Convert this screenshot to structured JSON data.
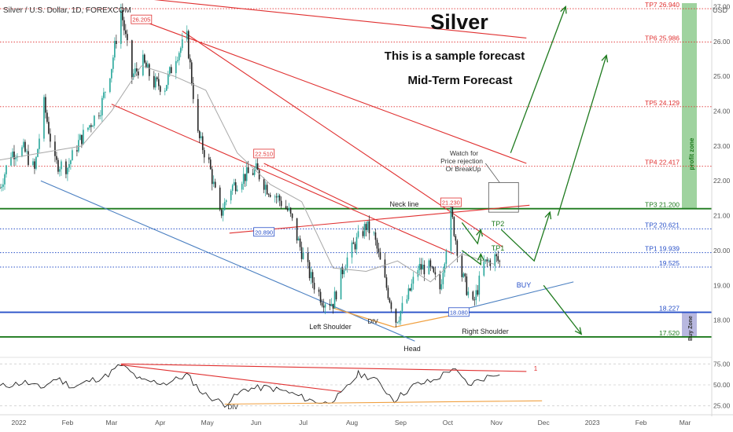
{
  "header": {
    "symbol_line": "Silver / U.S. Dollar, 1D, FOREXCOM",
    "title": "Silver",
    "subtitle": "This is a sample forecast",
    "subtitle2": "Mid-Term Forecast",
    "currency": "USD"
  },
  "annotations": {
    "neck_line": "Neck line",
    "watch_for": [
      "Watch for",
      "Price rejection",
      "Or BreakUp"
    ],
    "left_shoulder": "Left Shoulder",
    "head": "Head",
    "right_shoulder": "Right Shoulder",
    "div": "DIV",
    "div_rsi": "DIV",
    "buy": "BUY",
    "tp1": "TP1",
    "tp2": "TP2",
    "profit_zone": "profit zone",
    "buy_zone": "Buy Zone",
    "rsi_marker": "1",
    "peak_labels": [
      {
        "text": "26.205",
        "x": "2022-03-20",
        "y": 26.6
      },
      {
        "text": "22.510",
        "x": "2022-06-06",
        "y": 22.75
      },
      {
        "text": "20.890",
        "x": "2022-06-06",
        "y": 20.5
      },
      {
        "text": "21.230",
        "x": "2022-10-03",
        "y": 21.35
      },
      {
        "text": "18.080",
        "x": "2022-10-08",
        "y": 18.2
      }
    ]
  },
  "colors": {
    "red": "#e03030",
    "green": "#1e7a1e",
    "blue": "#2850c8",
    "steel": "#4a7fc1",
    "orange": "#f0a040",
    "candle_up": "#26a69a",
    "candle_down": "#222222",
    "ma": "#a8a8a8",
    "profit_band": "#9fd39f",
    "buy_band": "#b8b8e0"
  },
  "chart_data": {
    "type": "candlestick",
    "x_axis": {
      "range": [
        "2021-12-20",
        "2023-03-18"
      ],
      "tick_labels": [
        {
          "x": "2022-01-01",
          "label": "2022"
        },
        {
          "x": "2022-02-01",
          "label": "Feb"
        },
        {
          "x": "2022-03-01",
          "label": "Mar"
        },
        {
          "x": "2022-04-01",
          "label": "Apr"
        },
        {
          "x": "2022-05-01",
          "label": "May"
        },
        {
          "x": "2022-06-01",
          "label": "Jun"
        },
        {
          "x": "2022-07-01",
          "label": "Jul"
        },
        {
          "x": "2022-08-01",
          "label": "Aug"
        },
        {
          "x": "2022-09-01",
          "label": "Sep"
        },
        {
          "x": "2022-10-01",
          "label": "Oct"
        },
        {
          "x": "2022-11-01",
          "label": "Nov"
        },
        {
          "x": "2022-12-01",
          "label": "Dec"
        },
        {
          "x": "2023-01-01",
          "label": "2023"
        },
        {
          "x": "2023-02-01",
          "label": "Feb"
        },
        {
          "x": "2023-03-01",
          "label": "Mar"
        }
      ]
    },
    "y_axis": {
      "range": [
        17.0,
        27.1
      ],
      "tick_values": [
        18,
        19,
        20,
        21,
        22,
        23,
        24,
        25,
        26,
        27
      ],
      "tick_labels": [
        "18.00",
        "19.00",
        "20.00",
        "21.00",
        "22.00",
        "23.00",
        "24.00",
        "25.00",
        "26.00",
        "27.00"
      ]
    },
    "price_path": [
      {
        "x": "2021-12-20",
        "y": 21.8
      },
      {
        "x": "2021-12-27",
        "y": 22.8
      },
      {
        "x": "2022-01-04",
        "y": 22.9
      },
      {
        "x": "2022-01-11",
        "y": 22.3
      },
      {
        "x": "2022-01-17",
        "y": 24.2
      },
      {
        "x": "2022-01-24",
        "y": 22.5
      },
      {
        "x": "2022-02-01",
        "y": 22.4
      },
      {
        "x": "2022-02-08",
        "y": 23.1
      },
      {
        "x": "2022-02-15",
        "y": 23.6
      },
      {
        "x": "2022-02-22",
        "y": 24.1
      },
      {
        "x": "2022-03-01",
        "y": 25.3
      },
      {
        "x": "2022-03-07",
        "y": 26.9
      },
      {
        "x": "2022-03-14",
        "y": 25.0
      },
      {
        "x": "2022-03-21",
        "y": 25.4
      },
      {
        "x": "2022-03-28",
        "y": 24.8
      },
      {
        "x": "2022-04-04",
        "y": 24.7
      },
      {
        "x": "2022-04-11",
        "y": 25.6
      },
      {
        "x": "2022-04-18",
        "y": 26.1
      },
      {
        "x": "2022-04-25",
        "y": 23.3
      },
      {
        "x": "2022-05-02",
        "y": 22.5
      },
      {
        "x": "2022-05-09",
        "y": 21.0
      },
      {
        "x": "2022-05-16",
        "y": 21.8
      },
      {
        "x": "2022-05-23",
        "y": 22.1
      },
      {
        "x": "2022-06-01",
        "y": 22.3
      },
      {
        "x": "2022-06-08",
        "y": 21.8
      },
      {
        "x": "2022-06-15",
        "y": 21.5
      },
      {
        "x": "2022-06-22",
        "y": 21.1
      },
      {
        "x": "2022-06-29",
        "y": 20.1
      },
      {
        "x": "2022-07-06",
        "y": 19.2
      },
      {
        "x": "2022-07-13",
        "y": 18.6
      },
      {
        "x": "2022-07-20",
        "y": 18.5
      },
      {
        "x": "2022-07-27",
        "y": 19.6
      },
      {
        "x": "2022-08-03",
        "y": 20.2
      },
      {
        "x": "2022-08-10",
        "y": 20.7
      },
      {
        "x": "2022-08-15",
        "y": 20.4
      },
      {
        "x": "2022-08-22",
        "y": 19.1
      },
      {
        "x": "2022-08-29",
        "y": 18.0
      },
      {
        "x": "2022-09-05",
        "y": 18.6
      },
      {
        "x": "2022-09-12",
        "y": 19.5
      },
      {
        "x": "2022-09-19",
        "y": 19.5
      },
      {
        "x": "2022-09-26",
        "y": 18.9
      },
      {
        "x": "2022-10-03",
        "y": 21.1
      },
      {
        "x": "2022-10-10",
        "y": 19.3
      },
      {
        "x": "2022-10-17",
        "y": 18.4
      },
      {
        "x": "2022-10-24",
        "y": 19.6
      },
      {
        "x": "2022-10-31",
        "y": 19.8
      },
      {
        "x": "2022-11-04",
        "y": 19.6
      }
    ],
    "moving_average": [
      {
        "x": "2021-12-20",
        "y": 22.6
      },
      {
        "x": "2022-01-15",
        "y": 22.8
      },
      {
        "x": "2022-02-10",
        "y": 23.0
      },
      {
        "x": "2022-03-01",
        "y": 24.0
      },
      {
        "x": "2022-03-20",
        "y": 25.3
      },
      {
        "x": "2022-04-10",
        "y": 25.0
      },
      {
        "x": "2022-04-30",
        "y": 24.6
      },
      {
        "x": "2022-05-20",
        "y": 22.8
      },
      {
        "x": "2022-06-10",
        "y": 21.9
      },
      {
        "x": "2022-06-30",
        "y": 21.4
      },
      {
        "x": "2022-07-20",
        "y": 19.5
      },
      {
        "x": "2022-08-10",
        "y": 19.4
      },
      {
        "x": "2022-08-30",
        "y": 19.7
      },
      {
        "x": "2022-09-20",
        "y": 19.1
      },
      {
        "x": "2022-10-10",
        "y": 19.9
      },
      {
        "x": "2022-10-31",
        "y": 19.6
      }
    ],
    "levels": [
      {
        "name": "TP7",
        "label": "TP7  26.940",
        "value": 26.94,
        "color": "#e03030",
        "style": "dotted"
      },
      {
        "name": "TP6",
        "label": "TP6  25.986",
        "value": 25.986,
        "color": "#e03030",
        "style": "dotted"
      },
      {
        "name": "TP5",
        "label": "TP5  24.129",
        "value": 24.129,
        "color": "#e03030",
        "style": "dotted"
      },
      {
        "name": "TP4",
        "label": "TP4  22.417",
        "value": 22.417,
        "color": "#e03030",
        "style": "dotted"
      },
      {
        "name": "TP3",
        "label": "TP3  21.200",
        "value": 21.2,
        "color": "#1e7a1e",
        "style": "solid"
      },
      {
        "name": "TP2",
        "label": "TP2  20.621",
        "value": 20.621,
        "color": "#2850c8",
        "style": "dotted"
      },
      {
        "name": "TP1",
        "label": "TP1  19.939",
        "value": 19.939,
        "color": "#2850c8",
        "style": "dotted"
      },
      {
        "name": "L19525",
        "label": "19.525",
        "value": 19.525,
        "color": "#2850c8",
        "style": "dotted"
      },
      {
        "name": "L18227",
        "label": "18.227",
        "value": 18.227,
        "color": "#2850c8",
        "style": "solid"
      },
      {
        "name": "L17520",
        "label": "17.520",
        "value": 17.52,
        "color": "#1e7a1e",
        "style": "solid"
      }
    ],
    "trendlines": [
      {
        "name": "red-upper-1",
        "color": "#e03030",
        "points": [
          {
            "x": "2022-03-07",
            "y": 27.3
          },
          {
            "x": "2022-11-20",
            "y": 26.1
          }
        ]
      },
      {
        "name": "red-upper-2",
        "color": "#e03030",
        "points": [
          {
            "x": "2022-03-20",
            "y": 26.6
          },
          {
            "x": "2022-11-20",
            "y": 22.5
          }
        ]
      },
      {
        "name": "red-upper-3",
        "color": "#e03030",
        "points": [
          {
            "x": "2022-04-15",
            "y": 26.3
          },
          {
            "x": "2022-11-05",
            "y": 20.1
          }
        ]
      },
      {
        "name": "red-upper-4",
        "color": "#e03030",
        "points": [
          {
            "x": "2022-03-01",
            "y": 24.2
          },
          {
            "x": "2022-10-05",
            "y": 19.9
          }
        ]
      },
      {
        "name": "red-upper-5",
        "color": "#e03030",
        "points": [
          {
            "x": "2022-06-06",
            "y": 22.5
          },
          {
            "x": "2022-08-05",
            "y": 21.2
          }
        ]
      },
      {
        "name": "neck-line",
        "color": "#e03030",
        "points": [
          {
            "x": "2022-05-15",
            "y": 20.5
          },
          {
            "x": "2022-11-22",
            "y": 21.3
          }
        ]
      },
      {
        "name": "blue-support",
        "color": "#4a7fc1",
        "points": [
          {
            "x": "2022-01-15",
            "y": 22.0
          },
          {
            "x": "2022-09-10",
            "y": 17.4
          }
        ]
      },
      {
        "name": "blue-rising",
        "color": "#4a7fc1",
        "points": [
          {
            "x": "2022-10-10",
            "y": 18.3
          },
          {
            "x": "2022-12-20",
            "y": 19.1
          }
        ]
      }
    ],
    "pattern_lines": [
      {
        "name": "div-line",
        "color": "#f0a040",
        "points": [
          {
            "x": "2022-07-20",
            "y": 18.35
          },
          {
            "x": "2022-08-28",
            "y": 17.8
          }
        ]
      },
      {
        "name": "head-right-line",
        "color": "#f0a040",
        "points": [
          {
            "x": "2022-08-28",
            "y": 17.8
          },
          {
            "x": "2022-10-10",
            "y": 18.2
          }
        ]
      }
    ],
    "forecast_arrows": [
      {
        "name": "arrow-1",
        "color": "#1e7a1e",
        "points": [
          {
            "x": "2022-11-10",
            "y": 22.8
          },
          {
            "x": "2022-12-15",
            "y": 27.0
          }
        ]
      },
      {
        "name": "arrow-2",
        "color": "#1e7a1e",
        "points": [
          {
            "x": "2022-12-10",
            "y": 21.0
          },
          {
            "x": "2023-01-10",
            "y": 25.6
          }
        ]
      },
      {
        "name": "arrow-3",
        "color": "#1e7a1e",
        "points": [
          {
            "x": "2022-10-10",
            "y": 20.8
          },
          {
            "x": "2022-10-20",
            "y": 20.2
          },
          {
            "x": "2022-10-22",
            "y": 20.6
          }
        ]
      },
      {
        "name": "arrow-4",
        "color": "#1e7a1e",
        "points": [
          {
            "x": "2022-10-10",
            "y": 20.0
          },
          {
            "x": "2022-10-22",
            "y": 19.6
          },
          {
            "x": "2022-10-22",
            "y": 19.9
          }
        ]
      },
      {
        "name": "arrow-5",
        "color": "#1e7a1e",
        "points": [
          {
            "x": "2022-11-04",
            "y": 20.6
          },
          {
            "x": "2022-11-25",
            "y": 19.7
          },
          {
            "x": "2022-12-05",
            "y": 21.1
          }
        ]
      },
      {
        "name": "arrow-6",
        "color": "#1e7a1e",
        "points": [
          {
            "x": "2022-12-01",
            "y": 19.0
          },
          {
            "x": "2022-12-25",
            "y": 17.6
          }
        ]
      }
    ],
    "rsi": {
      "y_range": [
        20,
        80
      ],
      "tick_values": [
        25,
        50,
        75
      ],
      "tick_labels": [
        "25.00",
        "50.00",
        "75.00"
      ],
      "path": [
        {
          "x": "2021-12-20",
          "y": 48
        },
        {
          "x": "2022-01-05",
          "y": 53
        },
        {
          "x": "2022-01-15",
          "y": 46
        },
        {
          "x": "2022-01-25",
          "y": 58
        },
        {
          "x": "2022-02-05",
          "y": 47
        },
        {
          "x": "2022-02-15",
          "y": 55
        },
        {
          "x": "2022-02-25",
          "y": 60
        },
        {
          "x": "2022-03-07",
          "y": 74
        },
        {
          "x": "2022-03-20",
          "y": 55
        },
        {
          "x": "2022-04-05",
          "y": 52
        },
        {
          "x": "2022-04-18",
          "y": 62
        },
        {
          "x": "2022-04-28",
          "y": 40
        },
        {
          "x": "2022-05-12",
          "y": 27
        },
        {
          "x": "2022-05-25",
          "y": 45
        },
        {
          "x": "2022-06-08",
          "y": 47
        },
        {
          "x": "2022-06-20",
          "y": 42
        },
        {
          "x": "2022-07-05",
          "y": 32
        },
        {
          "x": "2022-07-15",
          "y": 28
        },
        {
          "x": "2022-07-25",
          "y": 38
        },
        {
          "x": "2022-08-05",
          "y": 63
        },
        {
          "x": "2022-08-15",
          "y": 58
        },
        {
          "x": "2022-08-28",
          "y": 32
        },
        {
          "x": "2022-09-10",
          "y": 50
        },
        {
          "x": "2022-09-22",
          "y": 55
        },
        {
          "x": "2022-10-04",
          "y": 70
        },
        {
          "x": "2022-10-14",
          "y": 50
        },
        {
          "x": "2022-10-24",
          "y": 58
        },
        {
          "x": "2022-11-04",
          "y": 66
        }
      ],
      "lines": [
        {
          "name": "rsi-red-1",
          "color": "#e03030",
          "points": [
            {
              "x": "2022-03-07",
              "y": 75
            },
            {
              "x": "2022-11-20",
              "y": 66
            }
          ]
        },
        {
          "name": "rsi-red-2",
          "color": "#e03030",
          "points": [
            {
              "x": "2022-03-07",
              "y": 74
            },
            {
              "x": "2022-07-25",
              "y": 42
            }
          ]
        },
        {
          "name": "rsi-orange",
          "color": "#f0a040",
          "points": [
            {
              "x": "2022-05-12",
              "y": 27
            },
            {
              "x": "2022-11-30",
              "y": 31
            }
          ]
        }
      ]
    }
  }
}
